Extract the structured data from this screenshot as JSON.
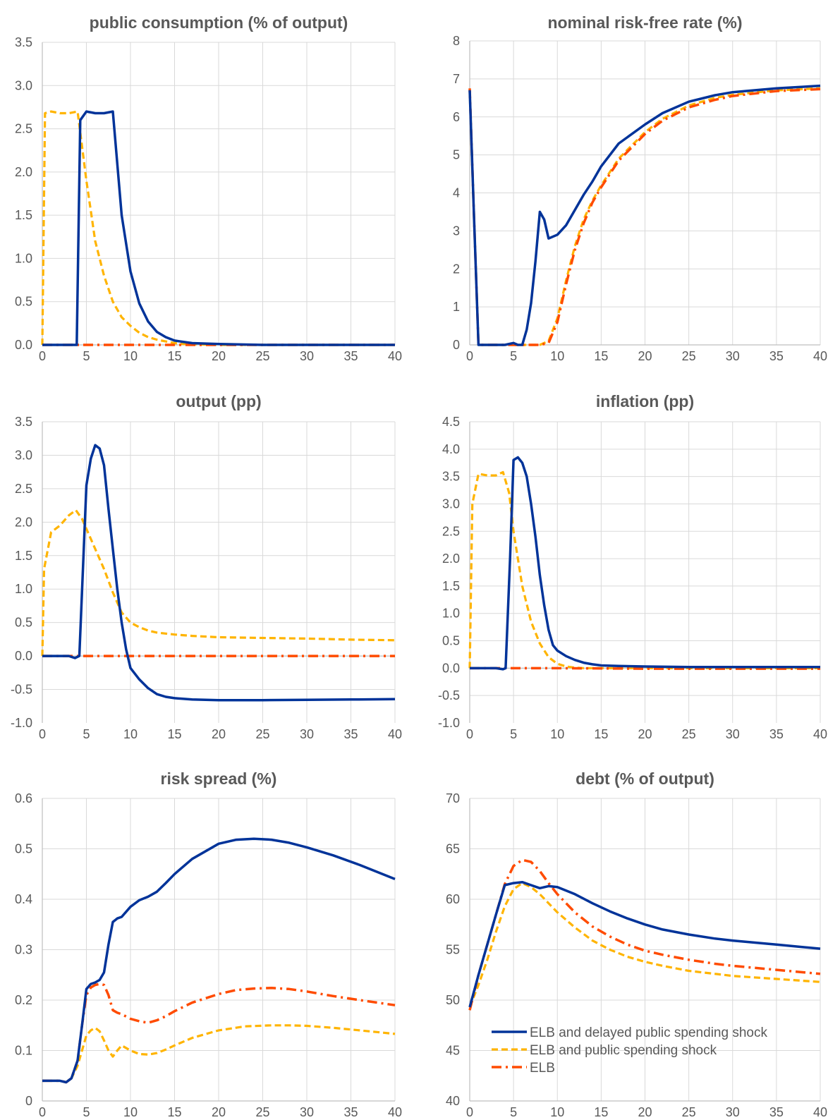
{
  "series_styles": [
    {
      "name": "ELB and delayed public spending shock",
      "color": "#003399",
      "dash": "none",
      "width": 3.5
    },
    {
      "name": "ELB and public spending shock",
      "color": "#FFB400",
      "dash": "9,5",
      "width": 3.2
    },
    {
      "name": "ELB",
      "color": "#FF4B00",
      "dash": "14,6,3,6",
      "width": 3.5
    }
  ],
  "legend_items": [
    "ELB and delayed public spending shock",
    "ELB and public spending shock",
    "ELB"
  ],
  "chart_data": [
    {
      "type": "line",
      "title": "public consumption (% of output)",
      "xlim": [
        0,
        40
      ],
      "ylim": [
        0,
        3.5
      ],
      "x_ticks": [
        "0",
        "5",
        "10",
        "15",
        "20",
        "25",
        "30",
        "35",
        "40"
      ],
      "y_ticks": [
        "0.0",
        "0.5",
        "1.0",
        "1.5",
        "2.0",
        "2.5",
        "3.0",
        "3.5"
      ],
      "series": [
        {
          "x": [
            0,
            1,
            2,
            3,
            3.9,
            4.3,
            5,
            6,
            7,
            8,
            9,
            10,
            11,
            12,
            13,
            14,
            15,
            17,
            20,
            25,
            30,
            40
          ],
          "values": [
            0,
            0,
            0,
            0,
            0,
            2.6,
            2.7,
            2.68,
            2.68,
            2.7,
            1.5,
            0.85,
            0.48,
            0.27,
            0.15,
            0.09,
            0.05,
            0.02,
            0.01,
            0,
            0,
            0
          ]
        },
        {
          "x": [
            0,
            0.3,
            1,
            2,
            3,
            4,
            5,
            6,
            7,
            8,
            9,
            10,
            11,
            12,
            13,
            14,
            15,
            16,
            18,
            20,
            25,
            40
          ],
          "values": [
            0,
            2.68,
            2.7,
            2.68,
            2.68,
            2.7,
            1.9,
            1.2,
            0.8,
            0.5,
            0.32,
            0.22,
            0.14,
            0.09,
            0.06,
            0.04,
            0.02,
            0.01,
            0.005,
            0,
            0,
            0
          ]
        },
        {
          "x": [
            0,
            40
          ],
          "values": [
            0,
            0
          ]
        }
      ]
    },
    {
      "type": "line",
      "title": "nominal risk-free rate (%)",
      "xlim": [
        0,
        40
      ],
      "ylim": [
        0,
        8
      ],
      "x_ticks": [
        "0",
        "5",
        "10",
        "15",
        "20",
        "25",
        "30",
        "35",
        "40"
      ],
      "y_ticks": [
        "0",
        "1",
        "2",
        "3",
        "4",
        "5",
        "6",
        "7",
        "8"
      ],
      "series": [
        {
          "x": [
            0,
            0.5,
            1,
            2,
            3,
            4,
            5,
            5.5,
            6,
            6.5,
            7,
            7.5,
            8,
            8.5,
            9,
            10,
            11,
            12,
            13,
            14,
            15,
            17,
            20,
            22,
            25,
            28,
            30,
            35,
            40
          ],
          "values": [
            6.7,
            3.3,
            0,
            0,
            0,
            0,
            0.05,
            0,
            0,
            0.4,
            1.1,
            2.2,
            3.5,
            3.3,
            2.8,
            2.9,
            3.15,
            3.55,
            3.95,
            4.3,
            4.7,
            5.3,
            5.8,
            6.1,
            6.4,
            6.57,
            6.65,
            6.75,
            6.82
          ]
        },
        {
          "x": [
            0,
            0.5,
            1,
            2,
            3,
            4,
            5,
            6,
            7,
            8,
            9,
            10,
            11,
            12,
            13,
            14,
            15,
            17,
            20,
            22,
            25,
            28,
            30,
            35,
            40
          ],
          "values": [
            6.7,
            3.3,
            0,
            0,
            0,
            0,
            0,
            0,
            0,
            0,
            0.1,
            0.7,
            1.7,
            2.6,
            3.3,
            3.8,
            4.2,
            4.9,
            5.6,
            5.95,
            6.3,
            6.5,
            6.58,
            6.7,
            6.75
          ]
        },
        {
          "x": [
            0,
            0.5,
            1,
            2,
            3,
            4,
            5,
            6,
            7,
            8,
            9,
            10,
            11,
            12,
            13,
            14,
            15,
            17,
            20,
            22,
            25,
            28,
            30,
            35,
            40
          ],
          "values": [
            6.75,
            3.3,
            0,
            0,
            0,
            0,
            0,
            0,
            0,
            0,
            0.05,
            0.6,
            1.6,
            2.5,
            3.2,
            3.75,
            4.15,
            4.85,
            5.55,
            5.9,
            6.25,
            6.45,
            6.55,
            6.68,
            6.73
          ]
        }
      ]
    },
    {
      "type": "line",
      "title": "output (pp)",
      "xlim": [
        0,
        40
      ],
      "ylim": [
        -1,
        3.5
      ],
      "x_ticks": [
        "0",
        "5",
        "10",
        "15",
        "20",
        "25",
        "30",
        "35",
        "40"
      ],
      "y_ticks": [
        "-1.0",
        "-0.5",
        "0.0",
        "0.5",
        "1.0",
        "1.5",
        "2.0",
        "2.5",
        "3.0",
        "3.5"
      ],
      "series": [
        {
          "x": [
            0,
            1,
            2,
            3,
            3.7,
            4.2,
            5,
            5.5,
            6,
            6.5,
            7,
            7.5,
            8,
            8.5,
            9,
            9.5,
            10,
            11,
            12,
            13,
            14,
            15,
            17,
            20,
            25,
            30,
            35,
            40
          ],
          "values": [
            0,
            0,
            0,
            0,
            -0.03,
            0,
            2.55,
            2.95,
            3.15,
            3.1,
            2.85,
            2.2,
            1.6,
            1.0,
            0.5,
            0.1,
            -0.18,
            -0.35,
            -0.48,
            -0.57,
            -0.61,
            -0.63,
            -0.65,
            -0.66,
            -0.66,
            -0.655,
            -0.65,
            -0.645
          ]
        },
        {
          "x": [
            0,
            0.2,
            1,
            2,
            3,
            3.8,
            4.5,
            5,
            6,
            7,
            8,
            9,
            10,
            11,
            12,
            13,
            15,
            17,
            20,
            25,
            30,
            35,
            40
          ],
          "values": [
            0,
            1.3,
            1.85,
            1.95,
            2.1,
            2.18,
            2.05,
            1.9,
            1.6,
            1.3,
            0.95,
            0.65,
            0.5,
            0.43,
            0.38,
            0.35,
            0.32,
            0.3,
            0.28,
            0.27,
            0.26,
            0.245,
            0.235
          ]
        },
        {
          "x": [
            0,
            40
          ],
          "values": [
            0,
            0
          ]
        }
      ]
    },
    {
      "type": "line",
      "title": "inflation (pp)",
      "xlim": [
        0,
        40
      ],
      "ylim": [
        -1,
        4.5
      ],
      "x_ticks": [
        "0",
        "5",
        "10",
        "15",
        "20",
        "25",
        "30",
        "35",
        "40"
      ],
      "y_ticks": [
        "-1.0",
        "-0.5",
        "0.0",
        "0.5",
        "1.0",
        "1.5",
        "2.0",
        "2.5",
        "3.0",
        "3.5",
        "4.0",
        "4.5"
      ],
      "series": [
        {
          "x": [
            0,
            1,
            2,
            3,
            3.8,
            4.1,
            4.6,
            5,
            5.5,
            6,
            6.5,
            7,
            7.5,
            8,
            8.5,
            9,
            9.5,
            10,
            11,
            12,
            13,
            14,
            15,
            17,
            20,
            25,
            30,
            40
          ],
          "values": [
            0,
            0,
            0,
            0,
            -0.02,
            0,
            2.0,
            3.8,
            3.85,
            3.75,
            3.5,
            3.0,
            2.4,
            1.7,
            1.15,
            0.7,
            0.42,
            0.32,
            0.22,
            0.15,
            0.1,
            0.07,
            0.05,
            0.04,
            0.03,
            0.02,
            0.02,
            0.02
          ]
        },
        {
          "x": [
            0,
            0.3,
            1,
            2,
            3,
            3.8,
            4.5,
            5,
            6,
            7,
            8,
            9,
            10,
            11,
            12,
            13,
            14,
            15,
            17,
            20,
            25,
            30,
            40
          ],
          "values": [
            0,
            3.0,
            3.55,
            3.52,
            3.52,
            3.58,
            3.2,
            2.5,
            1.5,
            0.85,
            0.45,
            0.2,
            0.08,
            0.03,
            0.01,
            0,
            0,
            0,
            0,
            0,
            0,
            0,
            0
          ]
        },
        {
          "x": [
            0,
            5,
            10,
            20,
            30,
            40
          ],
          "values": [
            0,
            0,
            0,
            -0.01,
            -0.01,
            -0.01
          ]
        }
      ]
    },
    {
      "type": "line",
      "title": "risk spread (%)",
      "xlim": [
        0,
        40
      ],
      "ylim": [
        0,
        0.6
      ],
      "x_ticks": [
        "0",
        "5",
        "10",
        "15",
        "20",
        "25",
        "30",
        "35",
        "40"
      ],
      "y_ticks": [
        "0",
        "0.1",
        "0.2",
        "0.3",
        "0.4",
        "0.5",
        "0.6"
      ],
      "series": [
        {
          "x": [
            0,
            1,
            2,
            2.7,
            3.3,
            4,
            4.5,
            5,
            5.5,
            6,
            6.5,
            7,
            7.5,
            8,
            8.5,
            9,
            10,
            11,
            12,
            13,
            14,
            15,
            17,
            20,
            22,
            24,
            26,
            28,
            30,
            33,
            36,
            40
          ],
          "values": [
            0.04,
            0.04,
            0.04,
            0.037,
            0.045,
            0.08,
            0.15,
            0.222,
            0.232,
            0.235,
            0.24,
            0.255,
            0.31,
            0.355,
            0.362,
            0.365,
            0.385,
            0.398,
            0.405,
            0.415,
            0.432,
            0.45,
            0.48,
            0.51,
            0.518,
            0.52,
            0.518,
            0.512,
            0.503,
            0.487,
            0.468,
            0.44
          ]
        },
        {
          "x": [
            0,
            1,
            2,
            2.7,
            3.3,
            4,
            4.5,
            5,
            5.5,
            6,
            6.5,
            7,
            7.5,
            8,
            8.5,
            9,
            10,
            11,
            12,
            13,
            14,
            15,
            17,
            20,
            23,
            26,
            28,
            30,
            33,
            36,
            40
          ],
          "values": [
            0.04,
            0.04,
            0.04,
            0.037,
            0.045,
            0.07,
            0.1,
            0.13,
            0.14,
            0.145,
            0.138,
            0.12,
            0.1,
            0.088,
            0.1,
            0.11,
            0.1,
            0.093,
            0.092,
            0.095,
            0.102,
            0.11,
            0.125,
            0.14,
            0.148,
            0.15,
            0.15,
            0.149,
            0.145,
            0.14,
            0.133
          ]
        },
        {
          "x": [
            0,
            1,
            2,
            2.7,
            3.3,
            4,
            4.5,
            5,
            5.5,
            6,
            6.5,
            7,
            7.5,
            8,
            8.5,
            9,
            10,
            11,
            12,
            13,
            14,
            15,
            17,
            20,
            22,
            24,
            26,
            28,
            30,
            33,
            36,
            40
          ],
          "values": [
            0.04,
            0.04,
            0.04,
            0.037,
            0.045,
            0.08,
            0.15,
            0.21,
            0.225,
            0.23,
            0.232,
            0.23,
            0.21,
            0.18,
            0.175,
            0.172,
            0.163,
            0.158,
            0.155,
            0.16,
            0.168,
            0.178,
            0.195,
            0.212,
            0.22,
            0.223,
            0.224,
            0.222,
            0.217,
            0.208,
            0.2,
            0.19
          ]
        }
      ]
    },
    {
      "type": "line",
      "title": "debt (% of output)",
      "xlim": [
        0,
        40
      ],
      "ylim": [
        40,
        70
      ],
      "x_ticks": [
        "0",
        "5",
        "10",
        "15",
        "20",
        "25",
        "30",
        "35",
        "40"
      ],
      "y_ticks": [
        "40",
        "45",
        "50",
        "55",
        "60",
        "65",
        "70"
      ],
      "series": [
        {
          "x": [
            0,
            1,
            2,
            3,
            4,
            5,
            6,
            7,
            8,
            9,
            10,
            12,
            14,
            16,
            18,
            20,
            22,
            25,
            28,
            30,
            35,
            40
          ],
          "values": [
            49.3,
            52.5,
            55.5,
            58.5,
            61.4,
            61.6,
            61.7,
            61.4,
            61.1,
            61.3,
            61.2,
            60.5,
            59.6,
            58.8,
            58.1,
            57.5,
            57.0,
            56.5,
            56.1,
            55.9,
            55.5,
            55.1
          ]
        },
        {
          "x": [
            0,
            1,
            2,
            3,
            4,
            5,
            6,
            7,
            8,
            9,
            10,
            12,
            14,
            16,
            18,
            20,
            22,
            25,
            28,
            30,
            35,
            40
          ],
          "values": [
            49.3,
            51.5,
            54.0,
            56.8,
            59.3,
            61.0,
            61.6,
            61.2,
            60.5,
            59.6,
            58.7,
            57.2,
            55.9,
            55.0,
            54.3,
            53.8,
            53.4,
            52.9,
            52.6,
            52.4,
            52.1,
            51.8
          ]
        },
        {
          "x": [
            0,
            1,
            2,
            3,
            4,
            5,
            6,
            7,
            8,
            9,
            10,
            12,
            14,
            16,
            18,
            20,
            22,
            25,
            28,
            30,
            35,
            40
          ],
          "values": [
            49.0,
            52.5,
            55.5,
            58.5,
            61.5,
            63.3,
            63.9,
            63.7,
            62.8,
            61.6,
            60.5,
            58.7,
            57.3,
            56.3,
            55.5,
            54.9,
            54.5,
            54.0,
            53.6,
            53.4,
            53.0,
            52.6
          ]
        }
      ]
    }
  ]
}
